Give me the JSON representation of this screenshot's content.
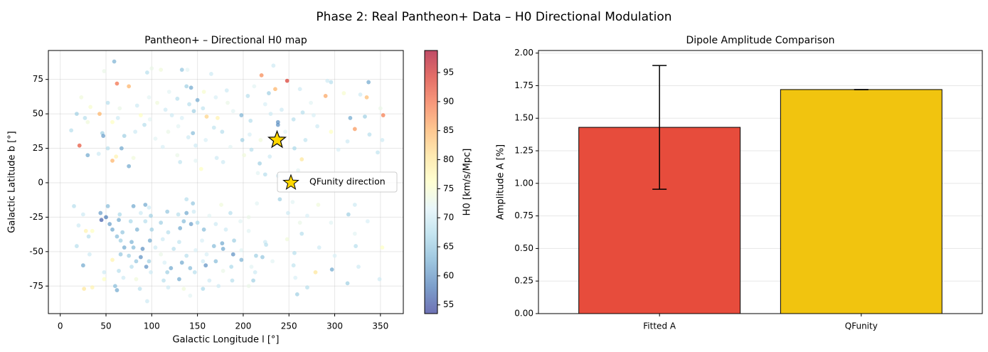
{
  "figure": {
    "suptitle": "Phase 2: Real Pantheon+ Data – H0 Directional Modulation"
  },
  "chart_data": [
    {
      "type": "scatter",
      "title": "Pantheon+ – Directional H0 map",
      "xlabel": "Galactic Longitude l [°]",
      "ylabel": "Galactic Latitude b [°]",
      "xlim": [
        -13,
        375
      ],
      "ylim": [
        -95,
        96
      ],
      "xticks": [
        0,
        50,
        100,
        150,
        200,
        250,
        300,
        350
      ],
      "yticks": [
        -75,
        -50,
        -25,
        0,
        25,
        50,
        75
      ],
      "grid": true,
      "legend": {
        "location": "center-right",
        "entries": [
          "QFunity direction"
        ]
      },
      "colorbar": {
        "label": "H0 [km/s/Mpc]",
        "range": [
          53.5,
          98.8
        ],
        "ticks": [
          55,
          60,
          65,
          70,
          75,
          80,
          85,
          90,
          95
        ],
        "colormap": "RdYlBu_r",
        "stops": [
          "#313695",
          "#4575b4",
          "#74add1",
          "#abd9e9",
          "#e0f3f8",
          "#ffffbf",
          "#fee090",
          "#fdae61",
          "#f46d43",
          "#d73027",
          "#a50026"
        ]
      },
      "marker": {
        "name": "QFunity direction",
        "l": 237,
        "b": 31,
        "color": "#ffd700"
      },
      "points": [
        [
          59,
          88,
          63
        ],
        [
          233,
          85,
          70
        ],
        [
          100,
          83,
          73
        ],
        [
          110,
          82,
          74
        ],
        [
          133,
          82,
          65
        ],
        [
          139,
          82,
          72
        ],
        [
          48,
          81,
          73
        ],
        [
          95,
          80,
          68
        ],
        [
          165,
          79,
          70
        ],
        [
          220,
          78,
          88
        ],
        [
          248,
          74,
          94
        ],
        [
          292,
          74,
          70
        ],
        [
          296,
          73,
          68
        ],
        [
          337,
          73,
          62
        ],
        [
          62,
          72,
          90
        ],
        [
          75,
          70,
          85
        ],
        [
          138,
          70,
          66
        ],
        [
          143,
          69,
          62
        ],
        [
          262,
          68,
          70
        ],
        [
          212,
          70,
          72
        ],
        [
          119,
          66,
          72
        ],
        [
          157,
          66,
          75
        ],
        [
          182,
          67,
          70
        ],
        [
          235,
          68,
          85
        ],
        [
          310,
          65,
          75
        ],
        [
          328,
          64,
          70
        ],
        [
          23,
          62,
          74
        ],
        [
          97,
          62,
          72
        ],
        [
          128,
          61,
          68
        ],
        [
          150,
          60,
          62
        ],
        [
          170,
          62,
          71
        ],
        [
          205,
          63,
          68
        ],
        [
          228,
          65,
          66
        ],
        [
          290,
          63,
          86
        ],
        [
          335,
          62,
          84
        ],
        [
          52,
          58,
          68
        ],
        [
          84,
          56,
          70
        ],
        [
          106,
          58,
          74
        ],
        [
          141,
          57,
          68
        ],
        [
          183,
          58,
          73
        ],
        [
          224,
          57,
          71
        ],
        [
          274,
          58,
          72
        ],
        [
          33,
          55,
          75
        ],
        [
          65,
          54,
          73
        ],
        [
          115,
          53,
          70
        ],
        [
          146,
          52,
          66
        ],
        [
          156,
          54,
          69
        ],
        [
          189,
          52,
          72
        ],
        [
          242,
          53,
          70
        ],
        [
          265,
          51,
          68
        ],
        [
          350,
          54,
          73
        ],
        [
          18,
          50,
          66
        ],
        [
          43,
          50,
          85
        ],
        [
          88,
          49,
          76
        ],
        [
          122,
          49,
          70
        ],
        [
          160,
          48,
          82
        ],
        [
          198,
          49,
          63
        ],
        [
          230,
          50,
          70
        ],
        [
          277,
          49,
          71
        ],
        [
          333,
          48,
          66
        ],
        [
          353,
          49,
          89
        ],
        [
          27,
          47,
          68
        ],
        [
          63,
          47,
          70
        ],
        [
          98,
          46,
          72
        ],
        [
          133,
          47,
          71
        ],
        [
          172,
          47,
          78
        ],
        [
          208,
          45,
          68
        ],
        [
          238,
          44,
          60
        ],
        [
          255,
          46,
          68
        ],
        [
          317,
          47,
          62
        ],
        [
          30,
          44,
          74
        ],
        [
          57,
          44,
          76
        ],
        [
          92,
          42,
          68
        ],
        [
          129,
          41,
          72
        ],
        [
          168,
          40,
          69
        ],
        [
          238,
          42,
          60
        ],
        [
          281,
          41,
          70
        ],
        [
          322,
          39,
          87
        ],
        [
          12,
          38,
          68
        ],
        [
          46,
          36,
          66
        ],
        [
          82,
          37,
          70
        ],
        [
          118,
          37,
          73
        ],
        [
          145,
          36,
          64
        ],
        [
          177,
          37,
          68
        ],
        [
          207,
          35,
          71
        ],
        [
          246,
          37,
          72
        ],
        [
          296,
          37,
          76
        ],
        [
          338,
          35,
          68
        ],
        [
          47,
          34,
          61
        ],
        [
          70,
          34,
          66
        ],
        [
          104,
          32,
          72
        ],
        [
          140,
          33,
          70
        ],
        [
          159,
          31,
          71
        ],
        [
          199,
          31,
          66
        ],
        [
          219,
          31,
          74
        ],
        [
          268,
          31,
          69
        ],
        [
          314,
          30,
          70
        ],
        [
          352,
          31,
          70
        ],
        [
          21,
          27,
          92
        ],
        [
          52,
          25,
          68
        ],
        [
          67,
          25,
          62
        ],
        [
          112,
          26,
          71
        ],
        [
          148,
          27,
          70
        ],
        [
          186,
          26,
          72
        ],
        [
          209,
          24,
          68
        ],
        [
          256,
          25,
          67
        ],
        [
          304,
          24,
          71
        ],
        [
          347,
          22,
          69
        ],
        [
          42,
          21,
          70
        ],
        [
          30,
          20,
          62
        ],
        [
          61,
          19,
          78
        ],
        [
          80,
          18,
          74
        ],
        [
          128,
          20,
          73
        ],
        [
          171,
          18,
          70
        ],
        [
          201,
          20,
          74
        ],
        [
          229,
          19,
          70
        ],
        [
          264,
          17,
          80
        ],
        [
          57,
          16,
          85
        ],
        [
          131,
          15,
          69
        ],
        [
          148,
          16,
          72
        ],
        [
          178,
          15,
          70
        ],
        [
          218,
          14,
          66
        ],
        [
          75,
          12,
          62
        ],
        [
          154,
          10,
          76
        ],
        [
          216,
          7,
          72
        ],
        [
          224,
          6,
          68
        ],
        [
          238,
          5,
          70
        ],
        [
          260,
          9,
          72
        ],
        [
          15,
          -17,
          68
        ],
        [
          52,
          -17,
          64
        ],
        [
          80,
          -17,
          62
        ],
        [
          93,
          -16,
          62
        ],
        [
          97,
          -18,
          70
        ],
        [
          138,
          -12,
          68
        ],
        [
          145,
          -15,
          65
        ],
        [
          176,
          -16,
          74
        ],
        [
          215,
          -15,
          72
        ],
        [
          240,
          -12,
          66
        ],
        [
          254,
          -14,
          72
        ],
        [
          282,
          -16,
          74
        ],
        [
          322,
          -16,
          70
        ],
        [
          25,
          -23,
          70
        ],
        [
          44,
          -22,
          61
        ],
        [
          50,
          -25,
          58
        ],
        [
          65,
          -23,
          67
        ],
        [
          88,
          -22,
          70
        ],
        [
          99,
          -24,
          66
        ],
        [
          117,
          -21,
          65
        ],
        [
          129,
          -23,
          68
        ],
        [
          138,
          -22,
          62
        ],
        [
          146,
          -21,
          70
        ],
        [
          163,
          -24,
          72
        ],
        [
          186,
          -22,
          68
        ],
        [
          206,
          -25,
          73
        ],
        [
          249,
          -22,
          70
        ],
        [
          270,
          -24,
          71
        ],
        [
          315,
          -23,
          66
        ],
        [
          45,
          -27,
          56
        ],
        [
          54,
          -30,
          61
        ],
        [
          64,
          -27,
          62
        ],
        [
          77,
          -28,
          67
        ],
        [
          93,
          -28,
          68
        ],
        [
          110,
          -29,
          66
        ],
        [
          135,
          -28,
          64
        ],
        [
          143,
          -30,
          61
        ],
        [
          150,
          -29,
          67
        ],
        [
          170,
          -30,
          70
        ],
        [
          197,
          -28,
          72
        ],
        [
          262,
          -29,
          73
        ],
        [
          296,
          -29,
          72
        ],
        [
          336,
          -28,
          71
        ],
        [
          20,
          -31,
          70
        ],
        [
          28,
          -35,
          78
        ],
        [
          35,
          -35,
          76
        ],
        [
          57,
          -34,
          62
        ],
        [
          68,
          -36,
          65
        ],
        [
          84,
          -34,
          63
        ],
        [
          100,
          -34,
          66
        ],
        [
          118,
          -36,
          68
        ],
        [
          131,
          -33,
          62
        ],
        [
          157,
          -34,
          64
        ],
        [
          181,
          -34,
          70
        ],
        [
          206,
          -35,
          72
        ],
        [
          264,
          -37,
          68
        ],
        [
          322,
          -37,
          72
        ],
        [
          31,
          -39,
          68
        ],
        [
          62,
          -39,
          64
        ],
        [
          66,
          -42,
          66
        ],
        [
          78,
          -43,
          63
        ],
        [
          98,
          -42,
          62
        ],
        [
          112,
          -41,
          70
        ],
        [
          130,
          -43,
          69
        ],
        [
          155,
          -42,
          71
        ],
        [
          177,
          -44,
          62
        ],
        [
          190,
          -42,
          66
        ],
        [
          224,
          -43,
          70
        ],
        [
          248,
          -41,
          74
        ],
        [
          18,
          -46,
          68
        ],
        [
          70,
          -47,
          62
        ],
        [
          80,
          -47,
          64
        ],
        [
          90,
          -48,
          60
        ],
        [
          104,
          -47,
          70
        ],
        [
          124,
          -48,
          68
        ],
        [
          148,
          -49,
          71
        ],
        [
          168,
          -46,
          64
        ],
        [
          178,
          -48,
          62
        ],
        [
          198,
          -49,
          72
        ],
        [
          225,
          -45,
          68
        ],
        [
          283,
          -47,
          70
        ],
        [
          323,
          -46,
          68
        ],
        [
          352,
          -47,
          76
        ],
        [
          32,
          -52,
          70
        ],
        [
          66,
          -52,
          65
        ],
        [
          75,
          -53,
          66
        ],
        [
          88,
          -54,
          60
        ],
        [
          110,
          -52,
          73
        ],
        [
          138,
          -53,
          68
        ],
        [
          160,
          -52,
          71
        ],
        [
          189,
          -52,
          60
        ],
        [
          214,
          -53,
          66
        ],
        [
          221,
          -54,
          65
        ],
        [
          256,
          -51,
          68
        ],
        [
          300,
          -53,
          71
        ],
        [
          57,
          -56,
          78
        ],
        [
          83,
          -57,
          65
        ],
        [
          97,
          -57,
          66
        ],
        [
          114,
          -58,
          71
        ],
        [
          133,
          -58,
          62
        ],
        [
          156,
          -57,
          70
        ],
        [
          170,
          -57,
          64
        ],
        [
          198,
          -56,
          63
        ],
        [
          232,
          -57,
          72
        ],
        [
          25,
          -60,
          62
        ],
        [
          78,
          -61,
          68
        ],
        [
          94,
          -61,
          60
        ],
        [
          121,
          -62,
          62
        ],
        [
          142,
          -62,
          64
        ],
        [
          159,
          -60,
          60
        ],
        [
          187,
          -61,
          67
        ],
        [
          209,
          -61,
          72
        ],
        [
          255,
          -60,
          69
        ],
        [
          326,
          -61,
          70
        ],
        [
          48,
          -65,
          70
        ],
        [
          64,
          -64,
          68
        ],
        [
          99,
          -65,
          70
        ],
        [
          117,
          -65,
          66
        ],
        [
          147,
          -65,
          68
        ],
        [
          178,
          -64,
          73
        ],
        [
          213,
          -65,
          70
        ],
        [
          279,
          -65,
          80
        ],
        [
          297,
          -63,
          62
        ],
        [
          48,
          -70,
          76
        ],
        [
          69,
          -69,
          70
        ],
        [
          83,
          -70,
          74
        ],
        [
          113,
          -71,
          68
        ],
        [
          130,
          -70,
          62
        ],
        [
          163,
          -71,
          70
        ],
        [
          188,
          -71,
          68
        ],
        [
          211,
          -71,
          66
        ],
        [
          257,
          -69,
          71
        ],
        [
          349,
          -70,
          70
        ],
        [
          35,
          -76,
          78
        ],
        [
          60,
          -75,
          64
        ],
        [
          62,
          -78,
          62
        ],
        [
          87,
          -77,
          68
        ],
        [
          118,
          -76,
          70
        ],
        [
          135,
          -77,
          74
        ],
        [
          156,
          -77,
          67
        ],
        [
          173,
          -75,
          70
        ],
        [
          206,
          -75,
          73
        ],
        [
          270,
          -76,
          68
        ],
        [
          314,
          -73,
          66
        ],
        [
          26,
          -77,
          80
        ],
        [
          95,
          -86,
          70
        ],
        [
          142,
          -82,
          72
        ],
        [
          259,
          -81,
          66
        ]
      ]
    },
    {
      "type": "bar",
      "title": "Dipole Amplitude Comparison",
      "categories": [
        "Fitted A",
        "QFunity"
      ],
      "values": [
        1.43,
        1.72
      ],
      "errors": [
        0.475,
        0.0
      ],
      "colors": [
        "#e74c3c",
        "#f1c40f"
      ],
      "xlabel": "",
      "ylabel": "Amplitude A [%]",
      "ylim": [
        0,
        2.02
      ],
      "yticks": [
        0.0,
        0.25,
        0.5,
        0.75,
        1.0,
        1.25,
        1.5,
        1.75,
        2.0
      ],
      "grid": true
    }
  ]
}
